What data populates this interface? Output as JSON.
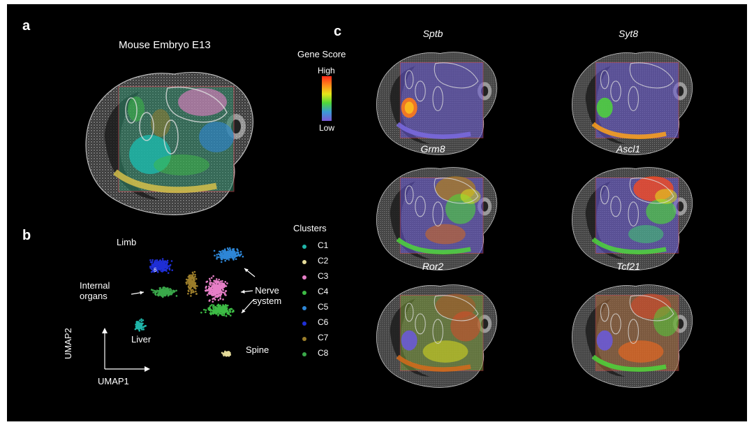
{
  "panels": {
    "a": {
      "letter": "a",
      "title": "Mouse Embryo E13"
    },
    "b": {
      "letter": "b",
      "x_axis": "UMAP1",
      "y_axis": "UMAP2",
      "annotations": {
        "limb": "Limb",
        "internal_1": "Internal",
        "internal_2": "organs",
        "liver": "Liver",
        "spine": "Spine",
        "nerve_1": "Nerve",
        "nerve_2": "system",
        "c6_number": "6"
      },
      "legend_title": "Clusters",
      "clusters": [
        {
          "label": "C1",
          "color": "#1fb5a8"
        },
        {
          "label": "C2",
          "color": "#e6dc9a"
        },
        {
          "label": "C3",
          "color": "#e77fc7"
        },
        {
          "label": "C4",
          "color": "#3dbb45"
        },
        {
          "label": "C5",
          "color": "#2e86d6"
        },
        {
          "label": "C6",
          "color": "#1f2fd6"
        },
        {
          "label": "C7",
          "color": "#9b7d2a"
        },
        {
          "label": "C8",
          "color": "#3aa84a"
        }
      ]
    },
    "c": {
      "letter": "c",
      "color_scale_title": "Gene Score",
      "high": "High",
      "low": "Low",
      "genes": [
        {
          "name": "Sptb",
          "pattern": "liver"
        },
        {
          "name": "Syt8",
          "pattern": "liver-spine"
        },
        {
          "name": "Grm8",
          "pattern": "nerve"
        },
        {
          "name": "Ascl1",
          "pattern": "nerve-high"
        },
        {
          "name": "Ror2",
          "pattern": "broad"
        },
        {
          "name": "Tcf21",
          "pattern": "broad-high"
        }
      ]
    }
  }
}
